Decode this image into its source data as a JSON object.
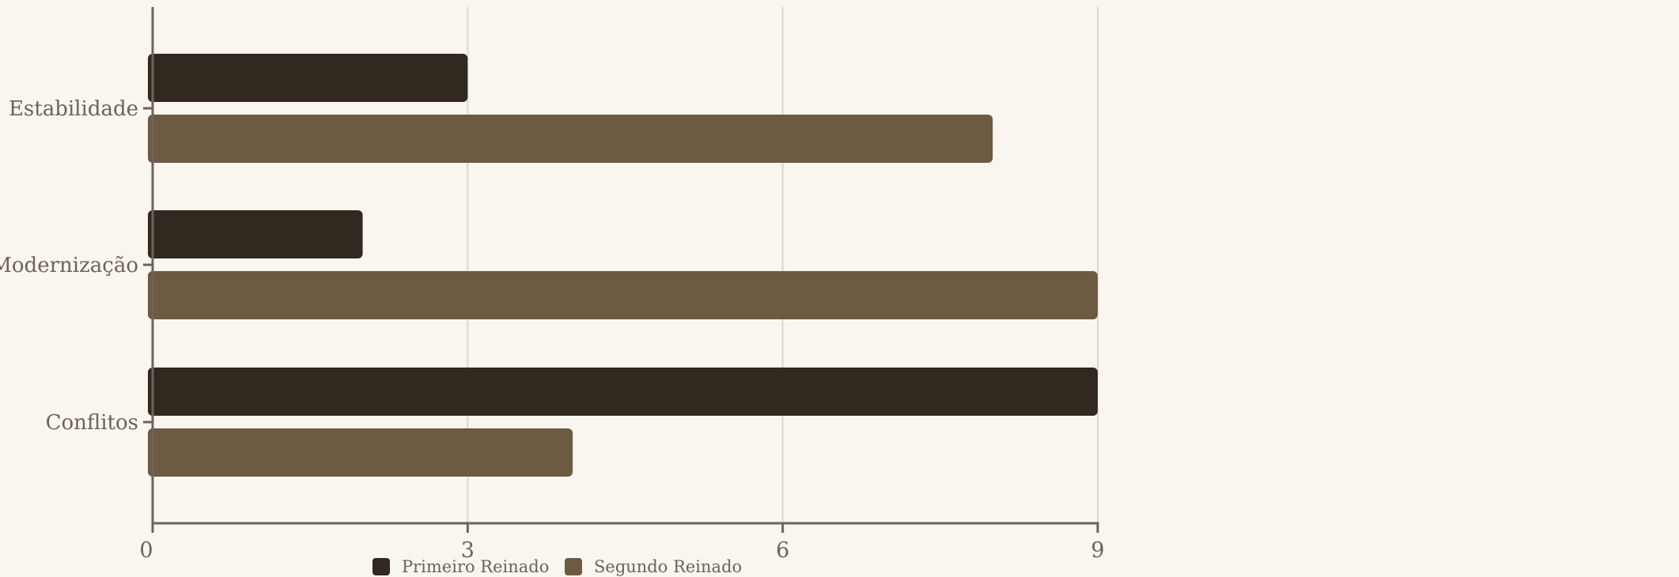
{
  "chart_data": {
    "type": "bar",
    "orientation": "horizontal",
    "categories": [
      "Estabilidade",
      "Modernização",
      "Conflitos"
    ],
    "series": [
      {
        "name": "Primeiro Reinado",
        "values": [
          3,
          2,
          9
        ],
        "color": "#312920"
      },
      {
        "name": "Segundo Reinado",
        "values": [
          8,
          9,
          4
        ],
        "color": "#6d5a43"
      }
    ],
    "xlim": [
      0,
      9
    ],
    "xticks": [
      0,
      3,
      6,
      9
    ],
    "grid": "vertical",
    "legend": "bottom-center",
    "title": "",
    "xlabel": "",
    "ylabel": ""
  },
  "colors": {
    "background": "#f9f5ef",
    "axis": "#6e6259",
    "grid": "#dcd7d0",
    "text": "#6e6259"
  }
}
